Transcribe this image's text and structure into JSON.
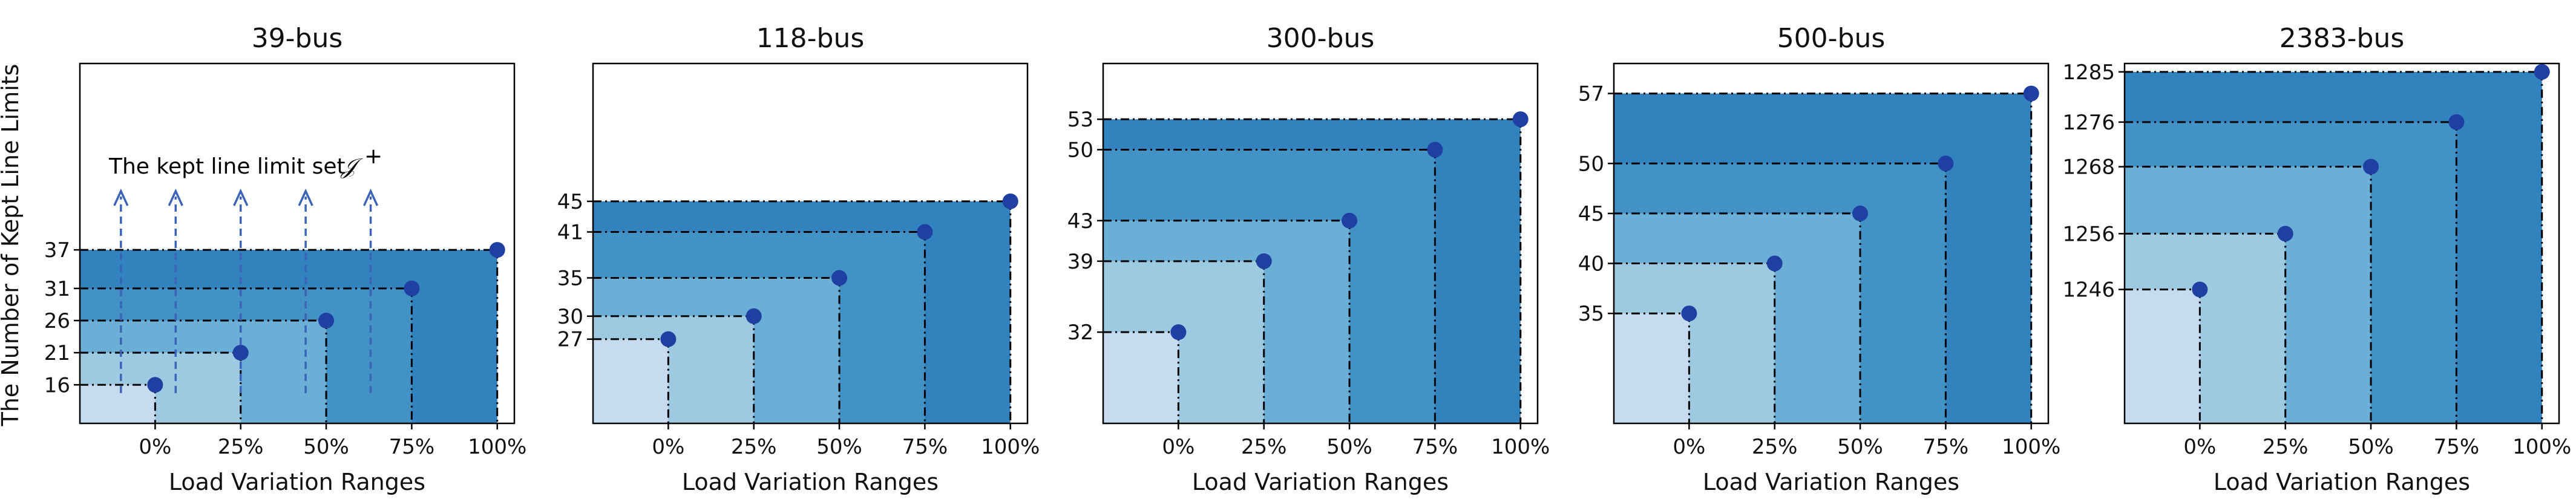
{
  "figure": {
    "ylabel": "The Number of Kept Line Limits",
    "xlabel": "Load Variation Ranges"
  },
  "annotation": {
    "text": "The kept line limit set",
    "symbol": "𝒥",
    "superscript": "+"
  },
  "colors": {
    "fill_levels": [
      "#c6dbef",
      "#9ecae1",
      "#6baed6",
      "#4292c6",
      "#3182bd"
    ],
    "point": "#1f3fa3",
    "arrow": "#3b64b8"
  },
  "chart_data": [
    {
      "type": "line",
      "title": "39-bus",
      "categories": [
        "0%",
        "25%",
        "50%",
        "75%",
        "100%"
      ],
      "values": [
        16,
        21,
        26,
        31,
        37
      ],
      "yticks": [
        16,
        21,
        26,
        31,
        37
      ],
      "ylim": [
        10,
        66
      ],
      "annotated": true
    },
    {
      "type": "line",
      "title": "118-bus",
      "categories": [
        "0%",
        "25%",
        "50%",
        "75%",
        "100%"
      ],
      "values": [
        27,
        30,
        35,
        41,
        45
      ],
      "yticks": [
        27,
        30,
        35,
        41,
        45
      ],
      "ylim": [
        16,
        63
      ]
    },
    {
      "type": "line",
      "title": "300-bus",
      "categories": [
        "0%",
        "25%",
        "50%",
        "75%",
        "100%"
      ],
      "values": [
        32,
        39,
        43,
        50,
        53
      ],
      "yticks": [
        32,
        39,
        43,
        50,
        53
      ],
      "ylim": [
        23,
        58.5
      ]
    },
    {
      "type": "line",
      "title": "500-bus",
      "categories": [
        "0%",
        "25%",
        "50%",
        "75%",
        "100%"
      ],
      "values": [
        35,
        40,
        45,
        50,
        57
      ],
      "yticks": [
        35,
        40,
        45,
        50,
        57
      ],
      "ylim": [
        24,
        60
      ]
    },
    {
      "type": "line",
      "title": "2383-bus",
      "categories": [
        "0%",
        "25%",
        "50%",
        "75%",
        "100%"
      ],
      "values": [
        1246,
        1256,
        1268,
        1276,
        1285
      ],
      "yticks": [
        1246,
        1256,
        1268,
        1276,
        1285
      ],
      "ylim": [
        1222,
        1286.5
      ]
    }
  ]
}
